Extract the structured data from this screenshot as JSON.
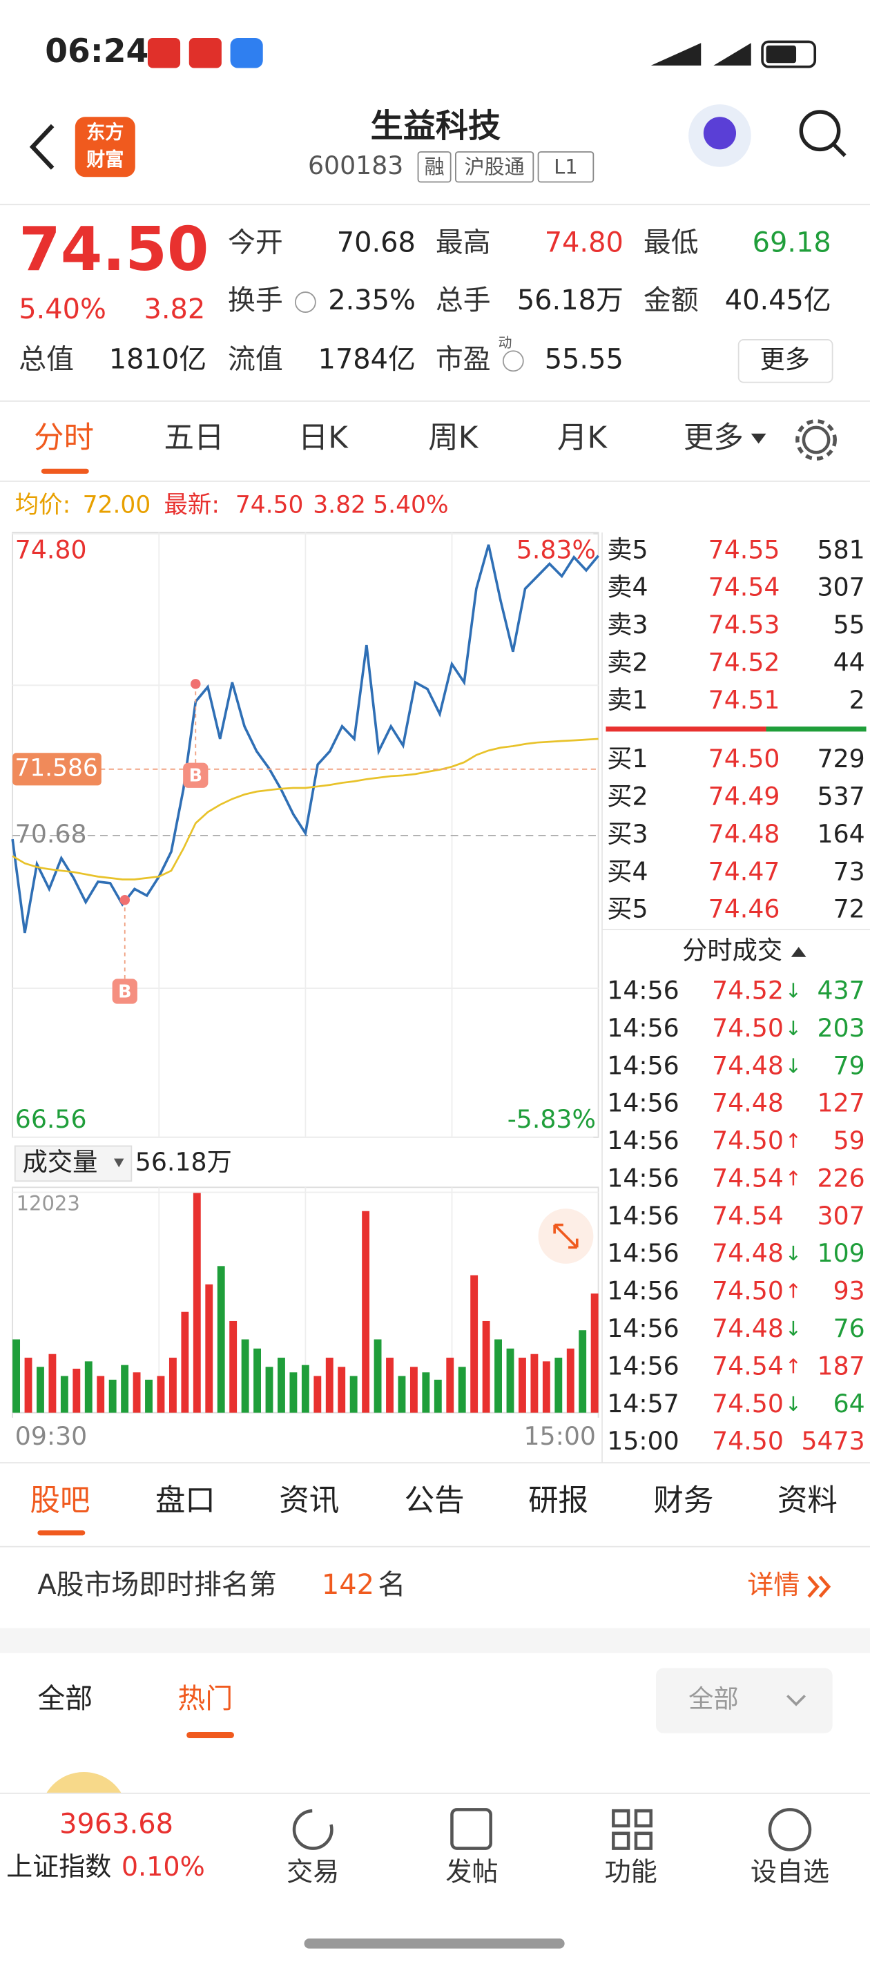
{
  "status_bar": {
    "time": "06:24"
  },
  "header": {
    "logo": [
      "东方",
      "财富"
    ],
    "name": "生益科技",
    "code": "600183",
    "tags": [
      "融",
      "沪股通",
      "L1"
    ]
  },
  "quote": {
    "price": "74.50",
    "change_pct": "5.40%",
    "change": "3.82",
    "fields": [
      {
        "label": "今开",
        "value": "70.68"
      },
      {
        "label": "最高",
        "value": "74.80",
        "color": "#e8312f"
      },
      {
        "label": "最低",
        "value": "69.18",
        "color": "#1f9e3a"
      },
      {
        "label": "换手",
        "value": "2.35%"
      },
      {
        "label": "总手",
        "value": "56.18万"
      },
      {
        "label": "金额",
        "value": "40.45亿"
      },
      {
        "label": "总值",
        "value": "1810亿"
      },
      {
        "label": "流值",
        "value": "1784亿"
      },
      {
        "label": "市盈",
        "value": "55.55",
        "sup": "动"
      }
    ],
    "more": "更多"
  },
  "period_tabs": [
    "分时",
    "五日",
    "日K",
    "周K",
    "月K",
    "更多"
  ],
  "legend": {
    "avg_label": "均价:",
    "avg": "72.00",
    "latest_label": "最新:",
    "latest": "74.50",
    "change": "3.82",
    "change_pct": "5.40%"
  },
  "chart_data": [
    {
      "type": "line",
      "x": [
        0,
        5,
        10,
        15,
        20,
        25,
        30,
        35,
        40,
        45,
        50,
        55,
        60,
        65,
        70,
        75,
        80,
        85,
        90,
        95,
        100,
        105,
        110,
        115,
        120,
        125,
        130,
        135,
        140,
        145,
        150,
        155,
        160,
        165,
        170,
        175,
        180,
        185,
        190,
        195,
        200,
        205,
        210,
        215,
        220,
        225,
        230,
        235,
        240
      ],
      "series": [
        {
          "color": "#2f6fb5",
          "values": [
            70.63,
            69.35,
            70.29,
            69.95,
            70.37,
            70.1,
            69.77,
            70.05,
            70.03,
            69.74,
            69.95,
            69.86,
            70.12,
            70.46,
            71.31,
            72.51,
            72.71,
            72.0,
            72.77,
            72.17,
            71.83,
            71.6,
            71.31,
            70.97,
            70.71,
            71.65,
            71.83,
            72.17,
            72.0,
            73.28,
            71.83,
            72.17,
            71.91,
            72.77,
            72.68,
            72.34,
            73.02,
            72.77,
            74.05,
            74.65,
            73.88,
            73.19,
            74.05,
            74.22,
            74.39,
            74.22,
            74.48,
            74.3,
            74.5
          ]
        },
        {
          "color": "#e8c22a",
          "values": [
            70.4,
            70.3,
            70.25,
            70.22,
            70.2,
            70.18,
            70.15,
            70.12,
            70.1,
            70.08,
            70.08,
            70.1,
            70.12,
            70.2,
            70.5,
            70.85,
            71.0,
            71.1,
            71.18,
            71.24,
            71.28,
            71.3,
            71.32,
            71.33,
            71.33,
            71.35,
            71.37,
            71.4,
            71.42,
            71.45,
            71.47,
            71.49,
            71.5,
            71.52,
            71.55,
            71.58,
            71.62,
            71.68,
            71.78,
            71.84,
            71.88,
            71.9,
            71.93,
            71.95,
            71.96,
            71.97,
            71.98,
            71.99,
            72.0
          ]
        }
      ],
      "xlim": [
        0,
        240
      ],
      "xticks": [
        {
          "value": 0,
          "label": "09:30"
        },
        {
          "value": 240,
          "label": "15:00"
        }
      ],
      "ylim": [
        66.56,
        74.8
      ],
      "yticks": [
        {
          "value": 74.8,
          "label": "74.80"
        },
        {
          "value": 70.68,
          "label": "70.68"
        },
        {
          "value": 66.56,
          "label": "66.56"
        }
      ],
      "y2lim": [
        -5.83,
        5.83
      ],
      "y2ticks": [
        {
          "value": 5.83,
          "label": "5.83%"
        },
        {
          "value": -5.83,
          "label": "-5.83%"
        }
      ],
      "crosshair": 71.586,
      "markers": [
        {
          "x": 75,
          "value": 72.75,
          "label": "B"
        },
        {
          "x": 46,
          "value": 69.8,
          "label": "B"
        }
      ]
    },
    {
      "type": "bar",
      "title": "成交量",
      "total": "56.18万",
      "x": [
        0,
        5,
        10,
        15,
        20,
        25,
        30,
        35,
        40,
        45,
        50,
        55,
        60,
        65,
        70,
        75,
        80,
        85,
        90,
        95,
        100,
        105,
        110,
        115,
        120,
        125,
        130,
        135,
        140,
        145,
        150,
        155,
        160,
        165,
        170,
        175,
        180,
        185,
        190,
        195,
        200,
        205,
        210,
        215,
        220,
        225,
        230,
        235,
        240
      ],
      "values": [
        4000,
        3000,
        2500,
        3200,
        2000,
        2400,
        2800,
        2000,
        1800,
        2600,
        2200,
        1800,
        2000,
        3000,
        5500,
        12023,
        7000,
        8000,
        5000,
        4000,
        3500,
        2500,
        3000,
        2200,
        2600,
        2000,
        3000,
        2500,
        2000,
        11000,
        4000,
        3000,
        2000,
        2500,
        2200,
        1800,
        3000,
        2500,
        7500,
        5000,
        4000,
        3500,
        3000,
        3200,
        2800,
        3000,
        3500,
        4500,
        6500
      ],
      "colors": [
        "#1f9e3a",
        "#e8312f",
        "#1f9e3a",
        "#e8312f",
        "#1f9e3a",
        "#e8312f",
        "#1f9e3a",
        "#e8312f",
        "#1f9e3a",
        "#1f9e3a",
        "#e8312f",
        "#1f9e3a",
        "#e8312f",
        "#e8312f",
        "#e8312f",
        "#e8312f",
        "#e8312f",
        "#1f9e3a",
        "#e8312f",
        "#1f9e3a",
        "#1f9e3a",
        "#1f9e3a",
        "#1f9e3a",
        "#1f9e3a",
        "#1f9e3a",
        "#e8312f",
        "#e8312f",
        "#e8312f",
        "#1f9e3a",
        "#e8312f",
        "#1f9e3a",
        "#e8312f",
        "#1f9e3a",
        "#e8312f",
        "#1f9e3a",
        "#1f9e3a",
        "#e8312f",
        "#1f9e3a",
        "#e8312f",
        "#e8312f",
        "#1f9e3a",
        "#1f9e3a",
        "#e8312f",
        "#e8312f",
        "#e8312f",
        "#1f9e3a",
        "#e8312f",
        "#1f9e3a",
        "#e8312f"
      ],
      "xlim": [
        0,
        240
      ],
      "ylim": [
        0,
        12023
      ],
      "yticks": [
        12023
      ]
    }
  ],
  "order_book": {
    "asks": [
      {
        "label": "卖5",
        "price": "74.55",
        "volume": "581"
      },
      {
        "label": "卖4",
        "price": "74.54",
        "volume": "307"
      },
      {
        "label": "卖3",
        "price": "74.53",
        "volume": "55"
      },
      {
        "label": "卖2",
        "price": "74.52",
        "volume": "44"
      },
      {
        "label": "卖1",
        "price": "74.51",
        "volume": "2"
      }
    ],
    "bids": [
      {
        "label": "买1",
        "price": "74.50",
        "volume": "729"
      },
      {
        "label": "买2",
        "price": "74.49",
        "volume": "537"
      },
      {
        "label": "买3",
        "price": "74.48",
        "volume": "164"
      },
      {
        "label": "买4",
        "price": "74.47",
        "volume": "73"
      },
      {
        "label": "买5",
        "price": "74.46",
        "volume": "72"
      }
    ]
  },
  "trades": {
    "title": "分时成交",
    "rows": [
      {
        "time": "14:56",
        "price": "74.52",
        "dir": "↓",
        "volume": "437"
      },
      {
        "time": "14:56",
        "price": "74.50",
        "dir": "↓",
        "volume": "203"
      },
      {
        "time": "14:56",
        "price": "74.48",
        "dir": "↓",
        "volume": "79"
      },
      {
        "time": "14:56",
        "price": "74.48",
        "volume": "127"
      },
      {
        "time": "14:56",
        "price": "74.50",
        "dir": "↑",
        "volume": "59"
      },
      {
        "time": "14:56",
        "price": "74.54",
        "dir": "↑",
        "volume": "226"
      },
      {
        "time": "14:56",
        "price": "74.54",
        "volume": "307"
      },
      {
        "time": "14:56",
        "price": "74.48",
        "dir": "↓",
        "volume": "109"
      },
      {
        "time": "14:56",
        "price": "74.50",
        "dir": "↑",
        "volume": "93"
      },
      {
        "time": "14:56",
        "price": "74.48",
        "dir": "↓",
        "volume": "76"
      },
      {
        "time": "14:56",
        "price": "74.54",
        "dir": "↑",
        "volume": "187"
      },
      {
        "time": "14:57",
        "price": "74.50",
        "dir": "↓",
        "volume": "64"
      },
      {
        "time": "15:00",
        "price": "74.50",
        "volume": "5473"
      }
    ]
  },
  "section_tabs": [
    "股吧",
    "盘口",
    "资讯",
    "公告",
    "研报",
    "财务",
    "资料"
  ],
  "rank": {
    "prefix": "A股市场即时排名第",
    "number": "142",
    "suffix": "名",
    "details": "详情"
  },
  "filters": {
    "tabs": [
      "全部",
      "热门"
    ],
    "dropdown": "全部"
  },
  "bottom_bar": {
    "index_value": "3963.68",
    "index_name": "上证指数",
    "index_change": "0.10%",
    "nav": [
      "交易",
      "发帖",
      "功能",
      "设自选"
    ]
  }
}
